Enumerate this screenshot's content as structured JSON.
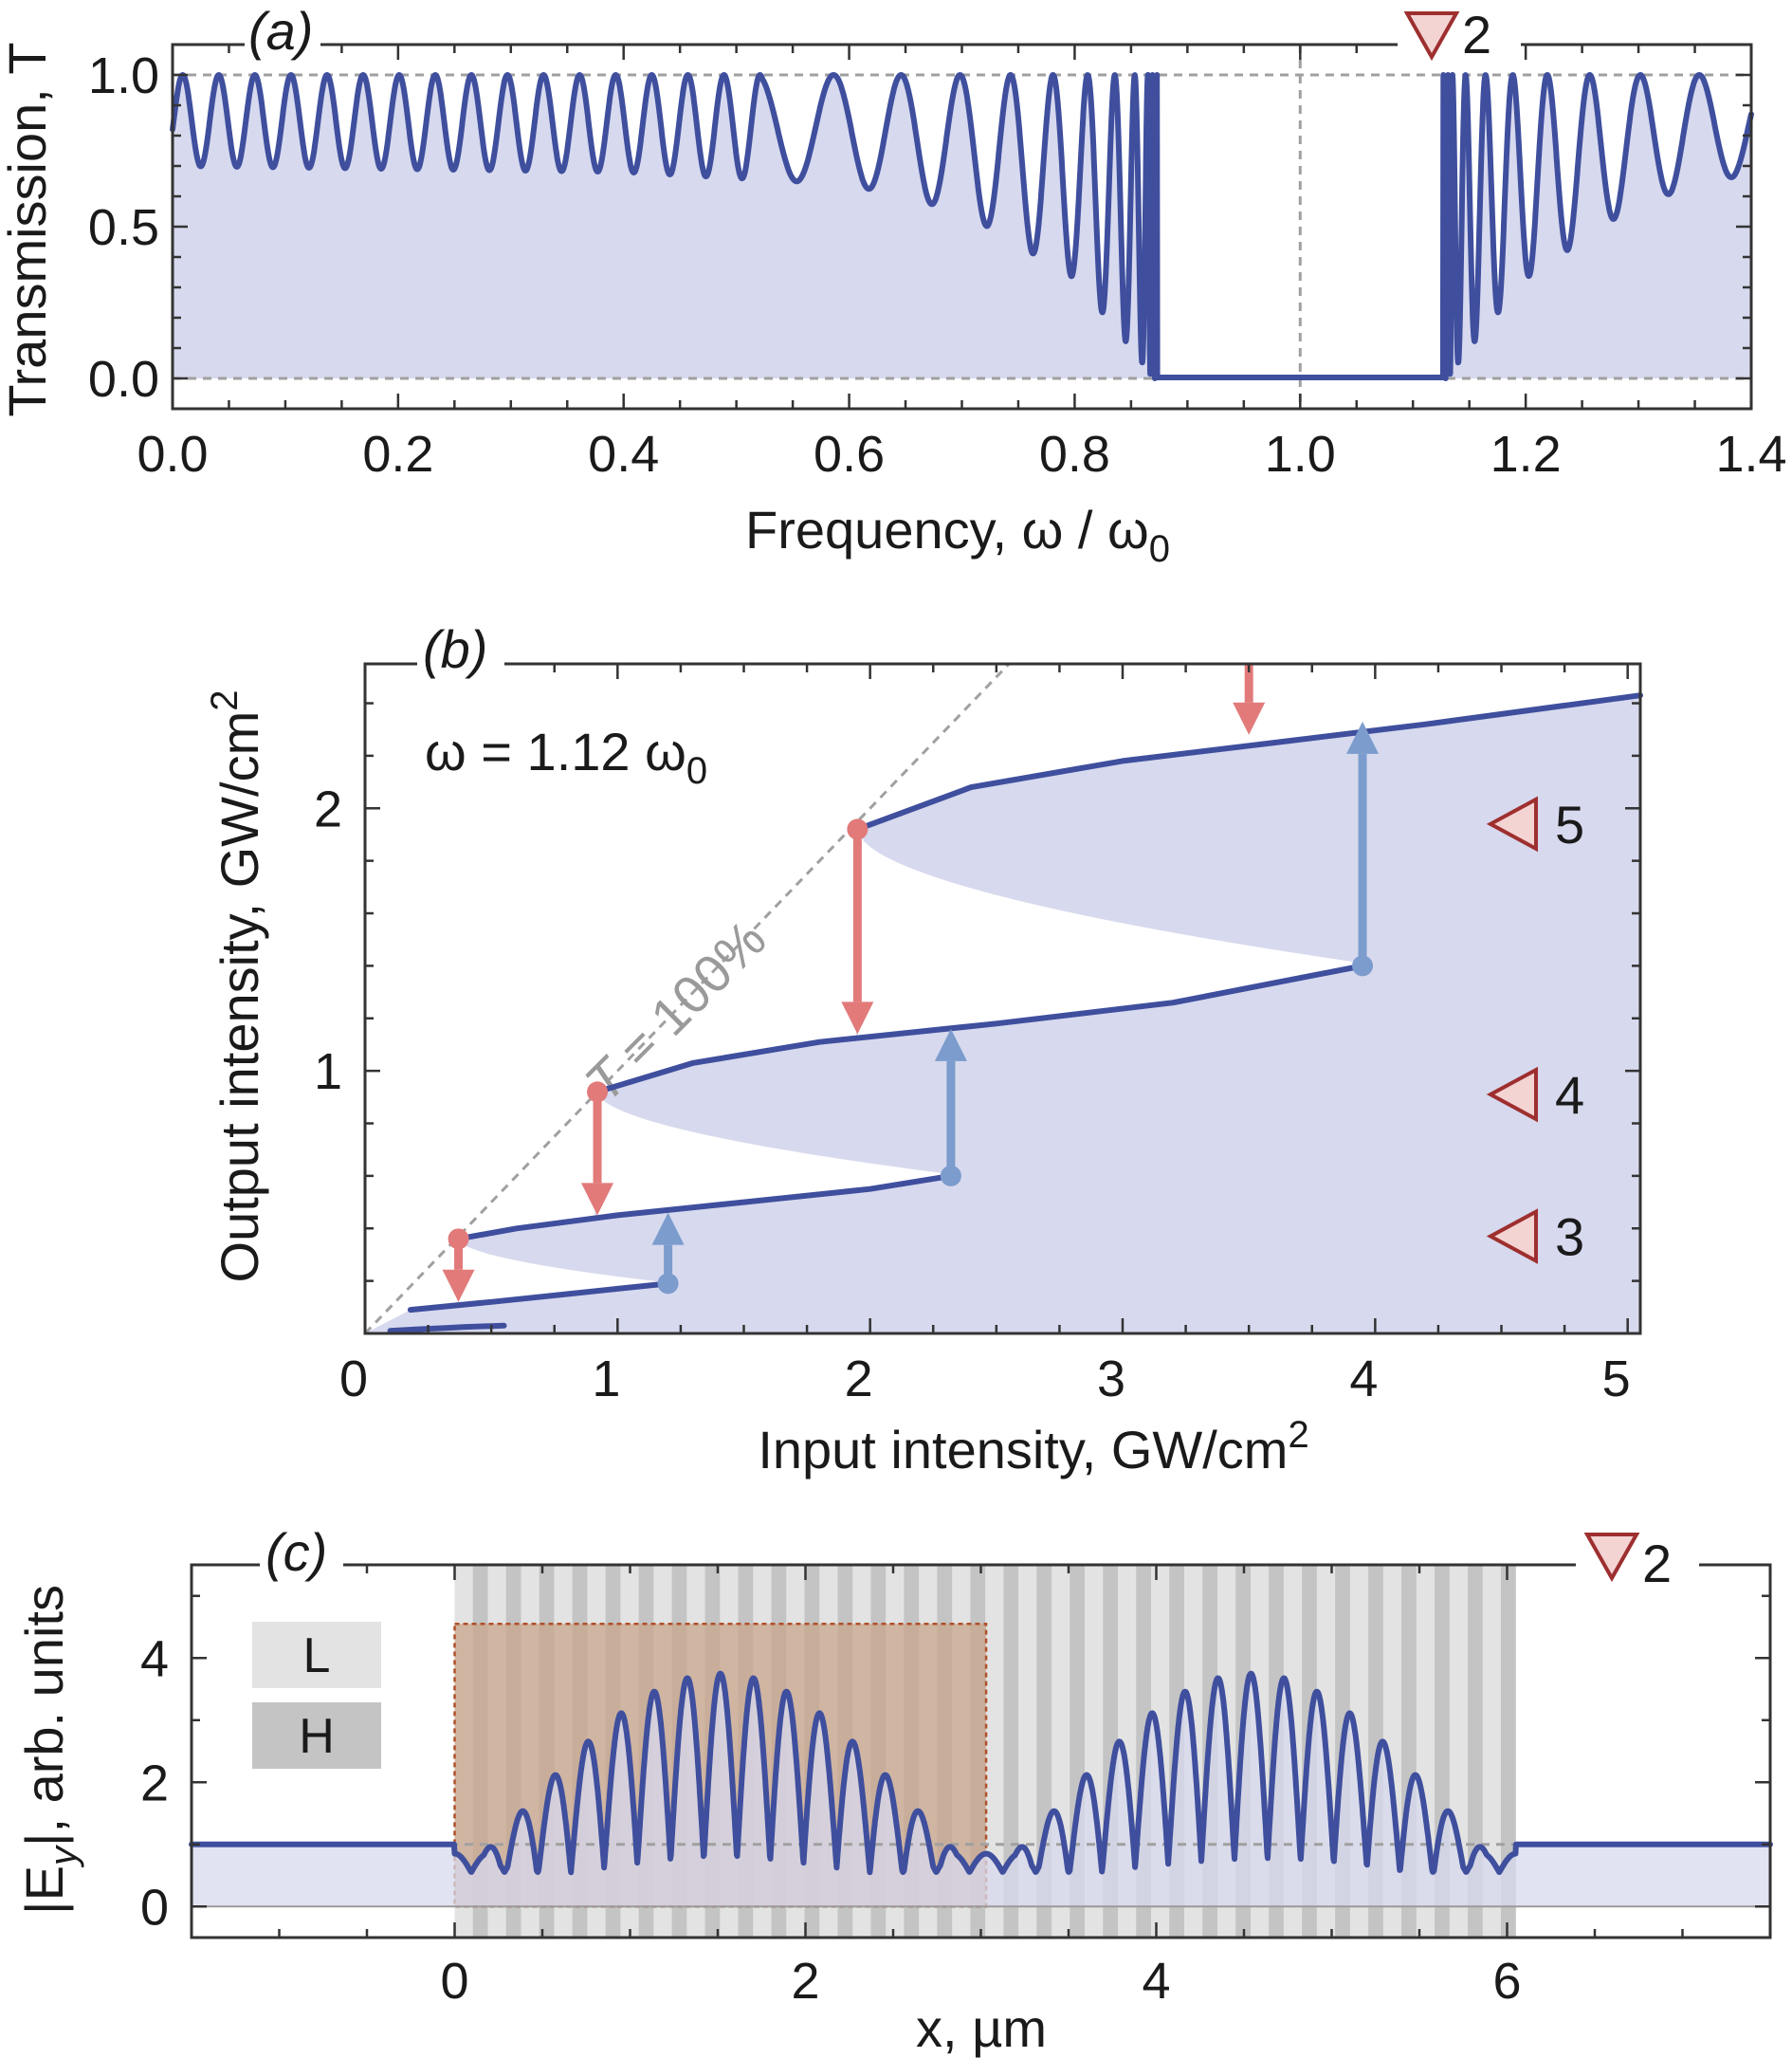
{
  "colors": {
    "curve": "#3f4f9e",
    "fill": "#d7d9ee",
    "up_arrow": "#7b9ccd",
    "down_arrow": "#e27a7a",
    "marker_fill": "#f4d3d3",
    "marker_stroke": "#9e2f2f",
    "layer_L": "#e3e3e3",
    "layer_H": "#c4c4c4",
    "highlight": "#c9a58c"
  },
  "chart_data": [
    {
      "panel": "(a)",
      "type": "line",
      "xlabel": "Frequency, ω / ω",
      "xlabel_sub": "0",
      "ylabel": "Transmission, T",
      "xlim": [
        0.0,
        1.4
      ],
      "ylim": [
        -0.1,
        1.1
      ],
      "xticks": [
        "0.0",
        "0.2",
        "0.4",
        "0.6",
        "0.8",
        "1.0",
        "1.2",
        "1.4"
      ],
      "yticks": [
        "0.0",
        "0.5",
        "1.0"
      ],
      "series": [
        {
          "name": "transmission",
          "model": "fabry-perot fringes with stop band",
          "x": [
            0.0,
            0.2,
            0.4,
            0.6,
            0.7,
            0.8,
            0.85,
            0.87,
            0.9,
            1.0,
            1.1,
            1.13,
            1.15,
            1.2,
            1.3,
            1.4
          ],
          "y_min_envelope": [
            0.7,
            0.69,
            0.68,
            0.64,
            0.55,
            0.33,
            0.1,
            0.0,
            0.0,
            0.0,
            0.0,
            0.0,
            0.1,
            0.33,
            0.58,
            0.68
          ],
          "y_max": 1.0,
          "stop_band": [
            0.873,
            1.127
          ]
        }
      ],
      "reference_lines": {
        "y": [
          0.0,
          1.0
        ],
        "x": [
          1.0
        ]
      },
      "marker": {
        "label": "2",
        "x": 1.12
      }
    },
    {
      "panel": "(b)",
      "type": "line",
      "title": "ω = 1.12 ω",
      "title_sub": "0",
      "xlabel": "Input intensity, GW/cm",
      "xlabel_sup": "2",
      "ylabel": "Output intensity, GW/cm",
      "ylabel_sup": "2",
      "xlim": [
        0,
        5.05
      ],
      "ylim": [
        0,
        2.55
      ],
      "xticks": [
        "0",
        "1",
        "2",
        "3",
        "4",
        "5"
      ],
      "yticks": [
        "1",
        "2"
      ],
      "diagonal_label": "T = 100%",
      "branches": [
        {
          "x": [
            0.1,
            0.2,
            0.3,
            0.4,
            0.5,
            0.55
          ],
          "y": [
            0.01,
            0.015,
            0.02,
            0.025,
            0.028,
            0.03
          ]
        },
        {
          "x": [
            0.18,
            0.5,
            0.8,
            1.0,
            1.2
          ],
          "y": [
            0.09,
            0.12,
            0.15,
            0.17,
            0.19
          ]
        },
        {
          "x": [
            0.37,
            0.6,
            1.0,
            1.5,
            2.0,
            2.32
          ],
          "y": [
            0.36,
            0.4,
            0.45,
            0.5,
            0.55,
            0.6
          ]
        },
        {
          "x": [
            0.92,
            1.3,
            1.8,
            2.5,
            3.2,
            3.95
          ],
          "y": [
            0.92,
            1.03,
            1.11,
            1.18,
            1.26,
            1.4
          ]
        },
        {
          "x": [
            1.95,
            2.4,
            3.0,
            3.6,
            4.2,
            5.05
          ],
          "y": [
            1.92,
            2.08,
            2.18,
            2.25,
            2.32,
            2.43
          ]
        }
      ],
      "turning_points_up": [
        {
          "x": 1.2,
          "y_from": 0.19,
          "y_to": 0.46
        },
        {
          "x": 2.32,
          "y_from": 0.6,
          "y_to": 1.16
        },
        {
          "x": 3.95,
          "y_from": 1.4,
          "y_to": 2.33
        }
      ],
      "turning_points_down": [
        {
          "x": 0.37,
          "y_from": 0.36,
          "y_to": 0.12
        },
        {
          "x": 0.92,
          "y_from": 0.92,
          "y_to": 0.45
        },
        {
          "x": 1.95,
          "y_from": 1.92,
          "y_to": 1.14
        },
        {
          "x": 3.5,
          "y_from": 2.6,
          "y_to": 2.28
        }
      ],
      "markers": [
        {
          "label": "5",
          "y": 1.94
        },
        {
          "label": "4",
          "y": 0.91
        },
        {
          "label": "3",
          "y": 0.37
        }
      ]
    },
    {
      "panel": "(c)",
      "type": "line",
      "xlabel": "x, µm",
      "ylabel": "|E",
      "ylabel_sub": "y",
      "ylabel_rest": "|, arb. units",
      "xlim": [
        -1.5,
        7.5
      ],
      "ylim": [
        -0.5,
        5.5
      ],
      "xticks": [
        "0",
        "2",
        "4",
        "6"
      ],
      "yticks": [
        "0",
        "2",
        "4"
      ],
      "structure_range": [
        0.0,
        6.05
      ],
      "highlight_range": {
        "x": [
          0.0,
          3.03
        ],
        "y": [
          0.0,
          4.55
        ]
      },
      "legend": [
        {
          "label": "L",
          "swatch": "layer_L"
        },
        {
          "label": "H",
          "swatch": "layer_H"
        }
      ],
      "field": {
        "outside_level": 1.0,
        "sections": [
          {
            "x0": 0.0,
            "x1": 3.03,
            "peak": 3.75
          },
          {
            "x0": 3.03,
            "x1": 6.05,
            "peak": 3.75
          }
        ],
        "periods_per_section": 16
      },
      "marker": {
        "label": "2"
      }
    }
  ]
}
